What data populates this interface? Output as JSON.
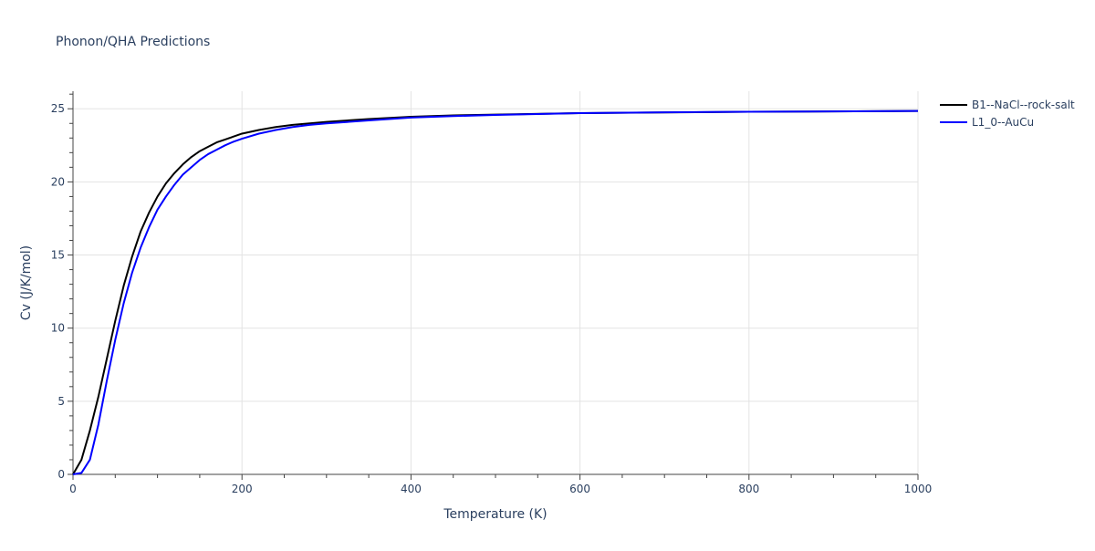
{
  "chart_data": {
    "type": "line",
    "title": "Phonon/QHA Predictions",
    "xlabel": "Temperature (K)",
    "ylabel": "Cv (J/K/mol)",
    "xlim": [
      0,
      1000
    ],
    "ylim": [
      0,
      26.2
    ],
    "x_ticks": [
      0,
      200,
      400,
      600,
      800,
      1000
    ],
    "y_ticks": [
      0,
      5,
      10,
      15,
      20,
      25
    ],
    "grid": true,
    "legend_position": "top-right",
    "series": [
      {
        "name": "B1--NaCl--rock-salt",
        "color": "#000000",
        "x": [
          0,
          10,
          20,
          30,
          40,
          50,
          60,
          70,
          80,
          90,
          100,
          110,
          120,
          130,
          140,
          150,
          160,
          170,
          180,
          190,
          200,
          220,
          240,
          260,
          280,
          300,
          350,
          400,
          450,
          500,
          600,
          700,
          800,
          900,
          1000
        ],
        "y": [
          0,
          1.0,
          3.0,
          5.3,
          7.9,
          10.5,
          12.9,
          14.9,
          16.6,
          17.9,
          19.0,
          19.9,
          20.6,
          21.2,
          21.7,
          22.1,
          22.4,
          22.7,
          22.9,
          23.1,
          23.3,
          23.55,
          23.75,
          23.9,
          24.0,
          24.1,
          24.3,
          24.45,
          24.55,
          24.6,
          24.7,
          24.75,
          24.8,
          24.82,
          24.85
        ]
      },
      {
        "name": "L1_0--AuCu",
        "color": "#0000ff",
        "x": [
          0,
          10,
          20,
          30,
          40,
          50,
          60,
          70,
          80,
          90,
          100,
          110,
          120,
          130,
          140,
          150,
          160,
          170,
          180,
          190,
          200,
          220,
          240,
          260,
          280,
          300,
          350,
          400,
          450,
          500,
          600,
          700,
          800,
          900,
          1000
        ],
        "y": [
          0,
          0.1,
          1.0,
          3.4,
          6.4,
          9.2,
          11.7,
          13.8,
          15.5,
          16.9,
          18.1,
          19.0,
          19.8,
          20.5,
          21.0,
          21.5,
          21.9,
          22.2,
          22.5,
          22.75,
          22.95,
          23.3,
          23.55,
          23.75,
          23.9,
          24.0,
          24.2,
          24.4,
          24.5,
          24.58,
          24.7,
          24.76,
          24.8,
          24.82,
          24.85
        ]
      }
    ]
  }
}
